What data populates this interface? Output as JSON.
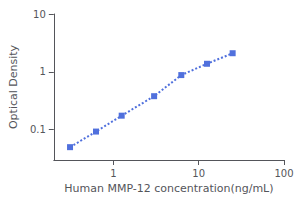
{
  "chart_data": {
    "type": "line",
    "xlabel": "Human MMP-12 concentration(ng/mL)",
    "ylabel": "Optical Density",
    "x": [
      0.31,
      0.625,
      1.25,
      3.0,
      6.25,
      12.5,
      25.0
    ],
    "values": [
      0.05,
      0.093,
      0.175,
      0.38,
      0.88,
      1.38,
      2.1
    ],
    "log": true,
    "xlim": [
      0.2,
      100
    ],
    "ylim": [
      0.03,
      10
    ],
    "xticks": [
      1,
      10,
      100
    ],
    "yticks": [
      0.1,
      1,
      10
    ],
    "grid": false,
    "marker": "square",
    "line_style": "dotted"
  }
}
